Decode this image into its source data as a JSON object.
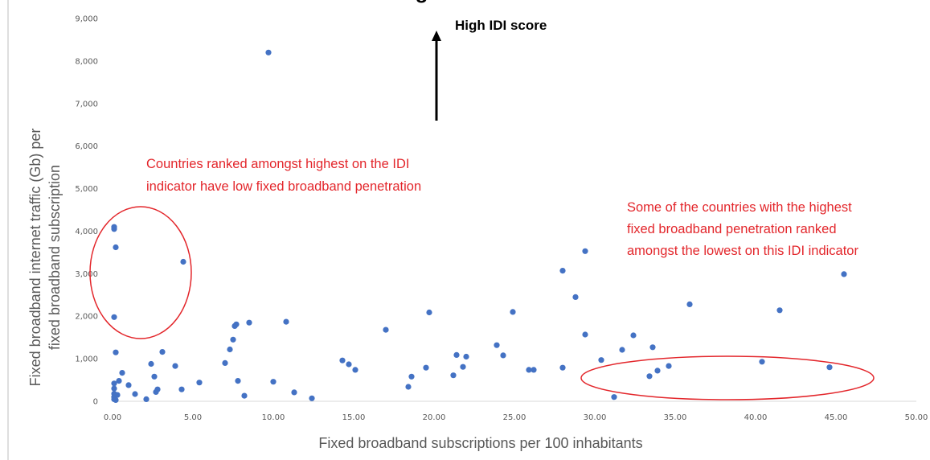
{
  "chart_data": {
    "type": "scatter",
    "title": "",
    "xlabel": "Fixed broadband subscriptions per 100 inhabitants",
    "ylabel_lines": [
      "Fixed broadband internet traffic  (Gb) per",
      "fixed broadband subscription"
    ],
    "xlim": [
      0,
      50
    ],
    "ylim": [
      0,
      9000
    ],
    "x_ticks": [
      "0.00",
      "5.00",
      "10.00",
      "15.00",
      "20.00",
      "25.00",
      "30.00",
      "35.00",
      "40.00",
      "45.00",
      "50.00"
    ],
    "y_ticks": [
      "0",
      "1,000",
      "2,000",
      "3,000",
      "4,000",
      "5,000",
      "6,000",
      "7,000",
      "8,000",
      "9,000"
    ],
    "grid": false,
    "legend": "none",
    "point_color": "#4472c4",
    "points": [
      [
        9.7,
        8200
      ],
      [
        0.1,
        4100
      ],
      [
        0.1,
        4050
      ],
      [
        0.2,
        3620
      ],
      [
        4.4,
        3280
      ],
      [
        0.1,
        1980
      ],
      [
        0.2,
        1150
      ],
      [
        0.1,
        420
      ],
      [
        0.1,
        300
      ],
      [
        0.1,
        180
      ],
      [
        0.1,
        100
      ],
      [
        0.1,
        50
      ],
      [
        0.2,
        30
      ],
      [
        0.3,
        150
      ],
      [
        0.4,
        480
      ],
      [
        0.6,
        670
      ],
      [
        1.0,
        380
      ],
      [
        1.4,
        170
      ],
      [
        2.1,
        50
      ],
      [
        2.4,
        880
      ],
      [
        2.6,
        580
      ],
      [
        2.7,
        220
      ],
      [
        2.8,
        280
      ],
      [
        3.1,
        1160
      ],
      [
        3.9,
        830
      ],
      [
        4.3,
        280
      ],
      [
        5.4,
        440
      ],
      [
        7.0,
        900
      ],
      [
        7.3,
        1220
      ],
      [
        7.5,
        1450
      ],
      [
        7.6,
        1770
      ],
      [
        7.7,
        1810
      ],
      [
        7.8,
        480
      ],
      [
        8.2,
        130
      ],
      [
        8.5,
        1850
      ],
      [
        10.0,
        460
      ],
      [
        10.8,
        1870
      ],
      [
        11.3,
        210
      ],
      [
        12.4,
        70
      ],
      [
        14.3,
        960
      ],
      [
        14.7,
        870
      ],
      [
        15.1,
        740
      ],
      [
        17.0,
        1680
      ],
      [
        18.4,
        340
      ],
      [
        18.6,
        580
      ],
      [
        19.5,
        790
      ],
      [
        19.7,
        2090
      ],
      [
        21.2,
        610
      ],
      [
        21.4,
        1090
      ],
      [
        21.8,
        810
      ],
      [
        22.0,
        1050
      ],
      [
        23.9,
        1320
      ],
      [
        24.3,
        1080
      ],
      [
        24.9,
        2100
      ],
      [
        25.9,
        740
      ],
      [
        26.2,
        740
      ],
      [
        28.0,
        3070
      ],
      [
        28.0,
        790
      ],
      [
        28.8,
        2450
      ],
      [
        29.4,
        3530
      ],
      [
        29.4,
        1570
      ],
      [
        30.4,
        970
      ],
      [
        31.2,
        100
      ],
      [
        31.7,
        1210
      ],
      [
        32.4,
        1550
      ],
      [
        33.4,
        590
      ],
      [
        33.6,
        1270
      ],
      [
        33.9,
        720
      ],
      [
        34.6,
        830
      ],
      [
        35.9,
        2280
      ],
      [
        40.4,
        930
      ],
      [
        41.5,
        2140
      ],
      [
        44.6,
        800
      ],
      [
        45.5,
        2990
      ]
    ]
  },
  "annotations": {
    "top_title": "High IDI score",
    "left_note": [
      "Countries ranked amongst highest on the IDI",
      "indicator have low fixed broadband penetration"
    ],
    "right_note": [
      "Some of the countries with the highest",
      "fixed broadband penetration ranked",
      "amongst the lowest on this IDI indicator"
    ],
    "ellipse_color": "#e3262b"
  }
}
